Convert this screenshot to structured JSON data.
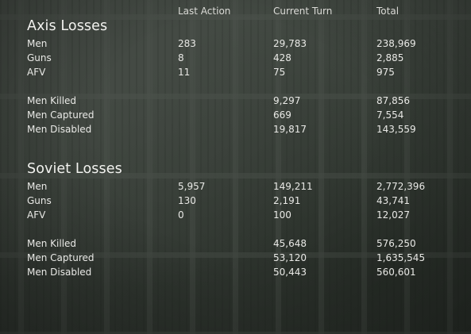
{
  "headers": {
    "last_action": "Last Action",
    "current_turn": "Current Turn",
    "total": "Total"
  },
  "axis": {
    "title": "Axis Losses",
    "rows": [
      {
        "label": "Men",
        "last": "283",
        "current": "29,783",
        "total": "238,969"
      },
      {
        "label": "Guns",
        "last": "8",
        "current": "428",
        "total": "2,885"
      },
      {
        "label": "AFV",
        "last": "11",
        "current": "75",
        "total": "975"
      },
      {
        "label": "Men Killed",
        "last": "",
        "current": "9,297",
        "total": "87,856"
      },
      {
        "label": "Men Captured",
        "last": "",
        "current": "669",
        "total": "7,554"
      },
      {
        "label": "Men Disabled",
        "last": "",
        "current": "19,817",
        "total": "143,559"
      }
    ]
  },
  "soviet": {
    "title": "Soviet Losses",
    "rows": [
      {
        "label": "Men",
        "last": "5,957",
        "current": "149,211",
        "total": "2,772,396"
      },
      {
        "label": "Guns",
        "last": "130",
        "current": "2,191",
        "total": "43,741"
      },
      {
        "label": "AFV",
        "last": "0",
        "current": "100",
        "total": "12,027"
      },
      {
        "label": "Men Killed",
        "last": "",
        "current": "45,648",
        "total": "576,250"
      },
      {
        "label": "Men Captured",
        "last": "",
        "current": "53,120",
        "total": "1,635,545"
      },
      {
        "label": "Men Disabled",
        "last": "",
        "current": "50,443",
        "total": "560,601"
      }
    ]
  }
}
